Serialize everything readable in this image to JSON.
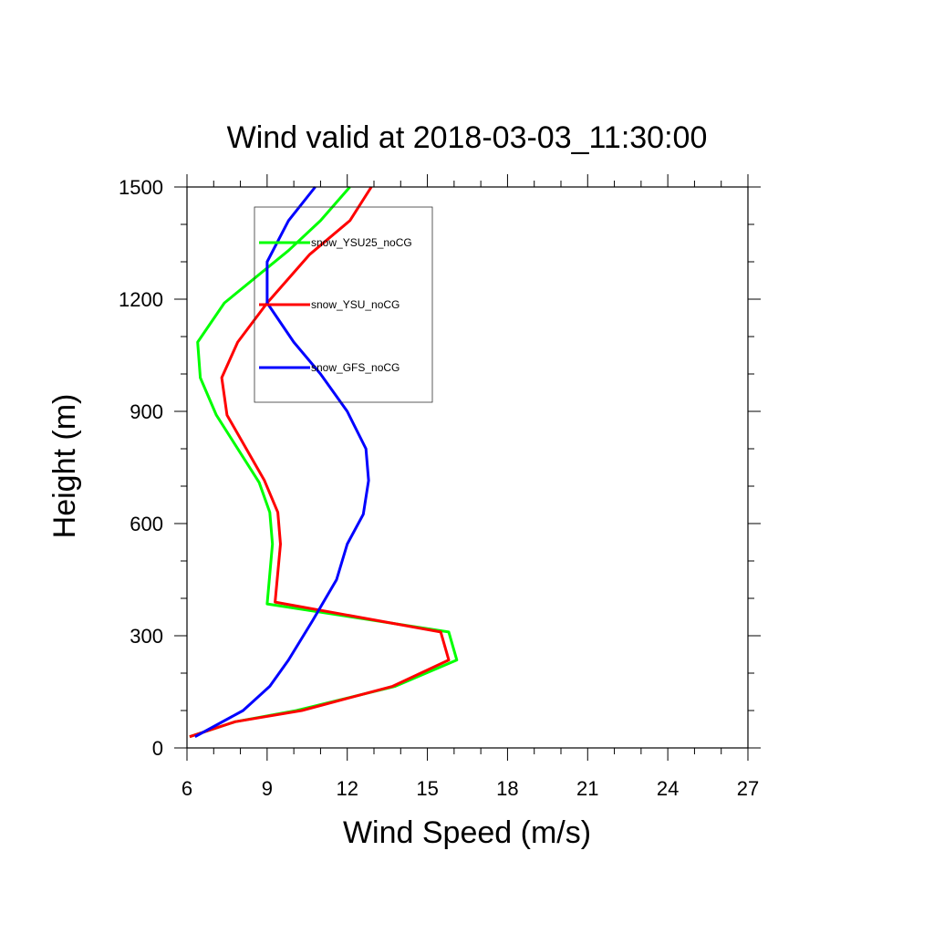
{
  "chart_data": {
    "type": "line",
    "title": "Wind valid at 2018-03-03_11:30:00",
    "xlabel": "Wind Speed (m/s)",
    "ylabel": "Height (m)",
    "xlim": [
      6,
      27
    ],
    "ylim": [
      0,
      1500
    ],
    "xticks": [
      6,
      9,
      12,
      15,
      18,
      21,
      24,
      27
    ],
    "yticks": [
      0,
      300,
      600,
      900,
      1200,
      1500
    ],
    "x_minor_step": 1,
    "y_minor_step": 100,
    "grid": false,
    "legend": {
      "placement": "top-left-inside",
      "boxed": true
    },
    "series": [
      {
        "name": "snow_YSU25_noCG",
        "color": "#00ff00",
        "points": [
          [
            6.1,
            30
          ],
          [
            7.8,
            70
          ],
          [
            10.1,
            100
          ],
          [
            13.8,
            165
          ],
          [
            16.1,
            235
          ],
          [
            15.8,
            310
          ],
          [
            9.0,
            385
          ],
          [
            9.2,
            545
          ],
          [
            9.1,
            630
          ],
          [
            8.7,
            710
          ],
          [
            7.1,
            890
          ],
          [
            6.5,
            990
          ],
          [
            6.4,
            1085
          ],
          [
            7.4,
            1190
          ],
          [
            9.8,
            1330
          ],
          [
            11.0,
            1410
          ],
          [
            12.1,
            1500
          ]
        ]
      },
      {
        "name": "snow_YSU_noCG",
        "color": "#ff0000",
        "points": [
          [
            6.1,
            30
          ],
          [
            7.8,
            70
          ],
          [
            10.3,
            100
          ],
          [
            13.7,
            165
          ],
          [
            15.8,
            235
          ],
          [
            15.5,
            310
          ],
          [
            9.3,
            390
          ],
          [
            9.5,
            545
          ],
          [
            9.4,
            630
          ],
          [
            8.9,
            715
          ],
          [
            7.5,
            890
          ],
          [
            7.3,
            990
          ],
          [
            7.9,
            1085
          ],
          [
            9.0,
            1190
          ],
          [
            10.6,
            1320
          ],
          [
            12.1,
            1410
          ],
          [
            12.9,
            1500
          ]
        ]
      },
      {
        "name": "snow_GFS_noCG",
        "color": "#0000ff",
        "points": [
          [
            6.3,
            30
          ],
          [
            8.1,
            100
          ],
          [
            9.1,
            165
          ],
          [
            9.8,
            235
          ],
          [
            10.7,
            340
          ],
          [
            11.6,
            450
          ],
          [
            12.0,
            545
          ],
          [
            12.6,
            625
          ],
          [
            12.8,
            715
          ],
          [
            12.7,
            800
          ],
          [
            12.0,
            900
          ],
          [
            11.0,
            1000
          ],
          [
            10.0,
            1085
          ],
          [
            9.0,
            1190
          ],
          [
            9.0,
            1300
          ],
          [
            9.8,
            1410
          ],
          [
            10.8,
            1500
          ]
        ]
      }
    ]
  }
}
